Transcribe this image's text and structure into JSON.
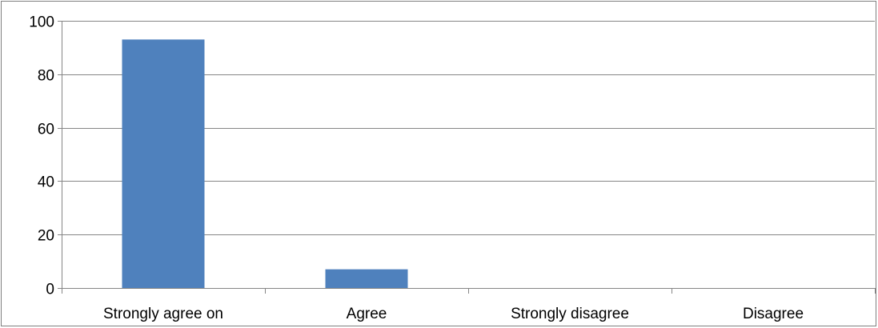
{
  "chart_data": {
    "type": "bar",
    "categories": [
      "Strongly agree on",
      "Agree",
      "Strongly disagree",
      "Disagree"
    ],
    "values": [
      93,
      7,
      0,
      0
    ],
    "ylim": [
      0,
      100
    ],
    "yticks": [
      0,
      20,
      40,
      60,
      80,
      100
    ],
    "grid": true,
    "legend": "none",
    "colors": {
      "bar": "#4f81bd",
      "grid": "#868686",
      "axis": "#868686"
    }
  }
}
